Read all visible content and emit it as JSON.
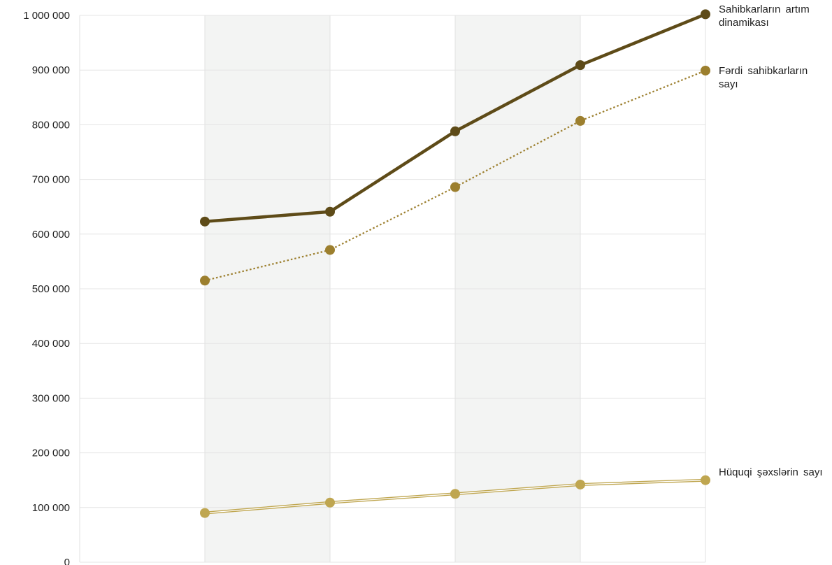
{
  "chart_data": {
    "type": "line",
    "title": "",
    "xlabel": "",
    "ylabel": "",
    "x": [
      1,
      2,
      3,
      4,
      5
    ],
    "ylim": [
      0,
      1000000
    ],
    "yticks": [
      0,
      100000,
      200000,
      300000,
      400000,
      500000,
      600000,
      700000,
      800000,
      900000,
      1000000
    ],
    "ytick_labels": [
      "0",
      "100 000",
      "200 000",
      "300 000",
      "400 000",
      "500 000",
      "600 000",
      "700 000",
      "800 000",
      "900 000",
      "1 000 000"
    ],
    "grid": true,
    "legend_placement": "right, at series ends",
    "series": [
      {
        "name": "Sahibkarların artım dinamikası",
        "values": [
          623000,
          641000,
          788000,
          909000,
          1002000
        ],
        "color": "#5e4b18",
        "style": "solid-thick"
      },
      {
        "name": "Fərdi sahibkarların sayı",
        "values": [
          515000,
          571000,
          686000,
          807000,
          899000
        ],
        "color": "#9c7f2e",
        "style": "dotted"
      },
      {
        "name": "Hüquqi şəxslərin sayı",
        "values": [
          90000,
          109000,
          125000,
          142000,
          150000
        ],
        "color": "#bfa650",
        "style": "double-thin"
      }
    ]
  }
}
